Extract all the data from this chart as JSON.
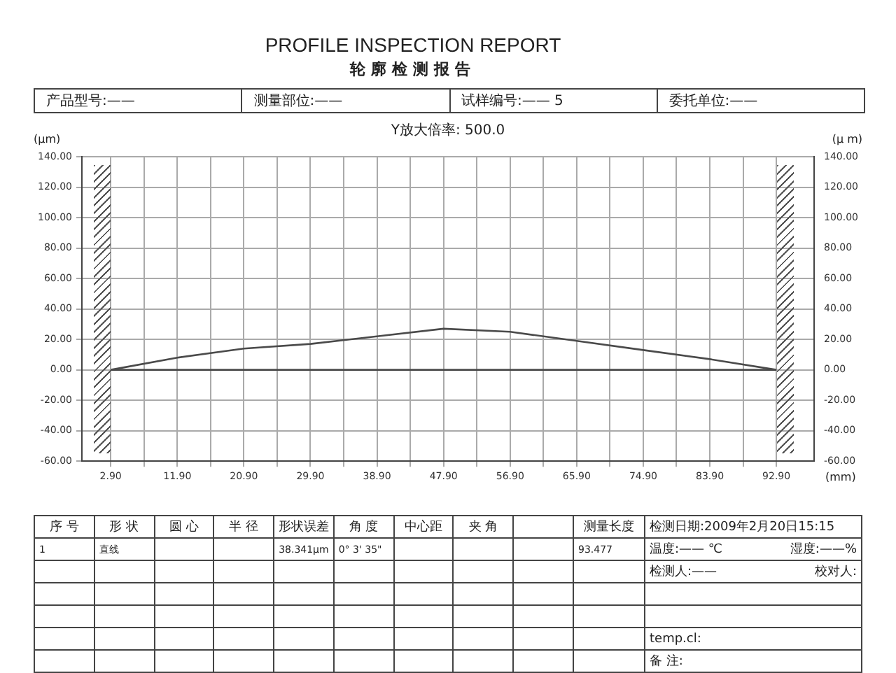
{
  "chart_data": {
    "type": "line",
    "title": "PROFILE INSPECTION REPORT",
    "subtitle": "轮廓检测报告",
    "xlabel": "(mm)",
    "ylabel": "(μm)",
    "y2label": "(μ m)",
    "annotations": [
      "产品型号:——",
      "测量部位:——",
      "试样编号:—— 5",
      "委托单位:——",
      "Y放大倍率: 500.0",
      "序 号",
      "形 状",
      "圆 心",
      "半 径",
      "形状误差",
      "角 度",
      "中心距",
      "夹 角",
      "测量长度",
      "1",
      "直线",
      "38.341μm",
      "0° 3' 35\"",
      "93.477",
      "检测日期:2009年2月20日15:15",
      "温度:—— ℃",
      "湿度:——%",
      "检测人:——",
      "校对人:",
      "temp.cl:",
      "备 注:"
    ],
    "x": [
      2.9,
      11.9,
      20.9,
      29.9,
      38.9,
      47.9,
      56.9,
      65.9,
      74.9,
      83.9,
      92.9
    ],
    "series": [
      {
        "color": "#4a4a4a",
        "values": [
          0,
          8,
          14,
          17,
          22,
          27,
          25,
          19,
          13,
          7,
          0
        ]
      },
      {
        "color": "#4a4a4a",
        "x": [
          2.9,
          92.9
        ],
        "values": [
          0,
          0
        ]
      }
    ],
    "xlim": [
      -1,
      98
    ],
    "xticks": [
      {
        "value": 2.9,
        "label": "2.90"
      },
      {
        "value": 7.4,
        "label": null
      },
      {
        "value": 11.9,
        "label": "11.90"
      },
      {
        "value": 16.4,
        "label": null
      },
      {
        "value": 20.9,
        "label": "20.90"
      },
      {
        "value": 25.4,
        "label": null
      },
      {
        "value": 29.9,
        "label": "29.90"
      },
      {
        "value": 34.4,
        "label": null
      },
      {
        "value": 38.9,
        "label": "38.90"
      },
      {
        "value": 43.4,
        "label": null
      },
      {
        "value": 47.9,
        "label": "47.90"
      },
      {
        "value": 52.4,
        "label": null
      },
      {
        "value": 56.9,
        "label": "56.90"
      },
      {
        "value": 61.4,
        "label": null
      },
      {
        "value": 65.9,
        "label": "65.90"
      },
      {
        "value": 70.4,
        "label": null
      },
      {
        "value": 74.9,
        "label": "74.90"
      },
      {
        "value": 79.4,
        "label": null
      },
      {
        "value": 83.9,
        "label": "83.90"
      },
      {
        "value": 88.4,
        "label": null
      },
      {
        "value": 92.9,
        "label": "92.90"
      }
    ],
    "ylim": [
      -60,
      140
    ],
    "yticks": [
      {
        "value": -60,
        "label": "-60.00"
      },
      {
        "value": -40,
        "label": "-40.00"
      },
      {
        "value": -20,
        "label": "-20.00"
      },
      {
        "value": 0,
        "label": "0.00"
      },
      {
        "value": 20,
        "label": "20.00"
      },
      {
        "value": 40,
        "label": "40.00"
      },
      {
        "value": 60,
        "label": "60.00"
      },
      {
        "value": 80,
        "label": "80.00"
      },
      {
        "value": 100,
        "label": "100.00"
      },
      {
        "value": 120,
        "label": "120.00"
      },
      {
        "value": 140,
        "label": "140.00"
      }
    ],
    "y2lim": [
      -60,
      140
    ],
    "y2ticks": [
      {
        "value": -60,
        "label": "-60.00"
      },
      {
        "value": -40,
        "label": "-40.00"
      },
      {
        "value": -20,
        "label": "-20.00"
      },
      {
        "value": 0,
        "label": "0.00"
      },
      {
        "value": 20,
        "label": "20.00"
      },
      {
        "value": 40,
        "label": "40.00"
      },
      {
        "value": 60,
        "label": "60.00"
      },
      {
        "value": 80,
        "label": "80.00"
      },
      {
        "value": 100,
        "label": "100.00"
      },
      {
        "value": 120,
        "label": "120.00"
      },
      {
        "value": 140,
        "label": "140.00"
      }
    ],
    "grid": true,
    "marker": "none",
    "line_style": "solid"
  }
}
